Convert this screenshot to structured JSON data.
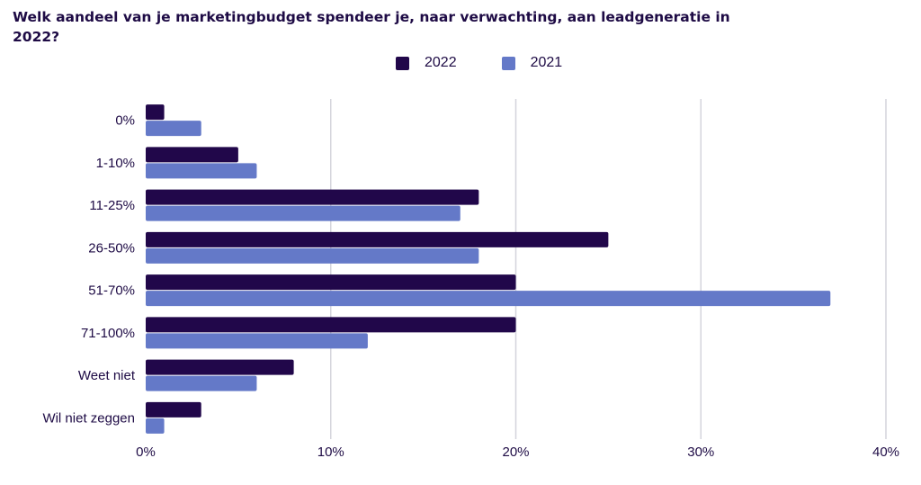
{
  "title": "Welk aandeel van je marketingbudget spendeer je, naar verwachting, aan leadgeneratie in 2022?",
  "colors": {
    "2022": "#21074a",
    "2021": "#6479c8",
    "grid": "#d4d4dc",
    "text": "#1e0b45"
  },
  "chart_data": {
    "type": "bar",
    "orientation": "horizontal",
    "title": "Welk aandeel van je marketingbudget spendeer je, naar verwachting, aan leadgeneratie in 2022?",
    "categories": [
      "0%",
      "1-10%",
      "11-25%",
      "26-50%",
      "51-70%",
      "71-100%",
      "Weet niet",
      "Wil niet zeggen"
    ],
    "series": [
      {
        "name": "2022",
        "values": [
          1,
          5,
          18,
          25,
          20,
          20,
          8,
          3
        ]
      },
      {
        "name": "2021",
        "values": [
          3,
          6,
          17,
          18,
          37,
          12,
          6,
          1
        ]
      }
    ],
    "xlim": [
      0,
      40
    ],
    "xticks": [
      "0%",
      "10%",
      "20%",
      "30%",
      "40%"
    ],
    "xtick_values": [
      0,
      10,
      20,
      30,
      40
    ],
    "grid": "vertical",
    "legend": "top-center"
  }
}
